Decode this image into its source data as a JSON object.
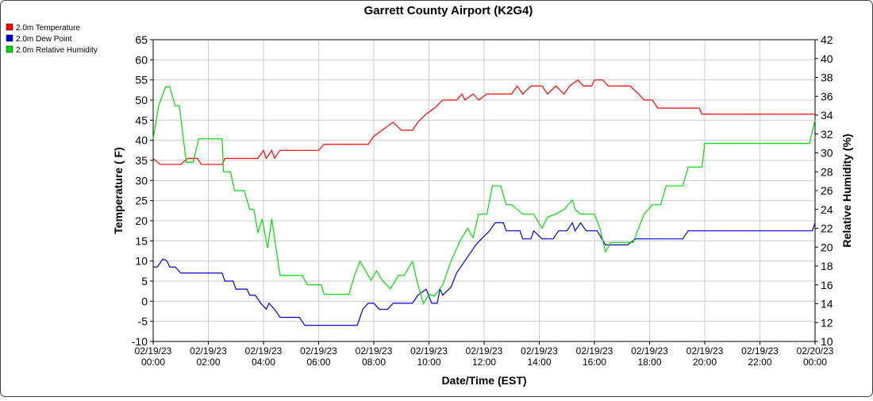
{
  "chart_data": {
    "type": "line",
    "title": "Garrett County Airport (K2G4)",
    "xlabel": "Date/Time (EST)",
    "ylabel": "Temperature ( F)",
    "y2label": "Relative Humidity (%)",
    "grid": true,
    "legend": "top-left",
    "xlim": [
      0,
      24
    ],
    "xticks": [
      {
        "value": 0,
        "label": "02/19/23 00:00"
      },
      {
        "value": 2,
        "label": "02/19/23 02:00"
      },
      {
        "value": 4,
        "label": "02/19/23 04:00"
      },
      {
        "value": 6,
        "label": "02/19/23 06:00"
      },
      {
        "value": 8,
        "label": "02/19/23 08:00"
      },
      {
        "value": 10,
        "label": "02/19/23 10:00"
      },
      {
        "value": 12,
        "label": "02/19/23 12:00"
      },
      {
        "value": 14,
        "label": "02/19/23 14:00"
      },
      {
        "value": 16,
        "label": "02/19/23 16:00"
      },
      {
        "value": 18,
        "label": "02/19/23 18:00"
      },
      {
        "value": 20,
        "label": "02/19/23 20:00"
      },
      {
        "value": 22,
        "label": "02/19/23 22:00"
      },
      {
        "value": 24,
        "label": "02/20/23 00:00"
      }
    ],
    "ylim": [
      -10,
      65
    ],
    "yticks": [
      -10,
      -5,
      0,
      5,
      10,
      15,
      20,
      25,
      30,
      35,
      40,
      45,
      50,
      55,
      60,
      65
    ],
    "y2lim": [
      10,
      42
    ],
    "y2ticks": [
      10,
      12,
      14,
      16,
      18,
      20,
      22,
      24,
      26,
      28,
      30,
      32,
      34,
      36,
      38,
      40,
      42
    ],
    "series": [
      {
        "name": "2.0m Temperature",
        "color": "#ff0000",
        "x": [
          0,
          0.25,
          1.0,
          1.25,
          1.6,
          1.75,
          2.5,
          2.6,
          3.8,
          4.0,
          4.1,
          4.3,
          4.4,
          4.6,
          6.0,
          6.2,
          7.8,
          8.0,
          8.3,
          8.7,
          9.0,
          9.4,
          9.6,
          9.9,
          10.2,
          10.5,
          11.0,
          11.2,
          11.3,
          11.6,
          11.8,
          12.1,
          13.0,
          13.2,
          13.4,
          13.7,
          14.1,
          14.3,
          14.6,
          14.9,
          15.1,
          15.4,
          15.6,
          15.9,
          16.0,
          16.3,
          16.5,
          17.3,
          17.6,
          17.8,
          18.1,
          18.3,
          19.8,
          19.9,
          24
        ],
        "values": [
          35.5,
          34,
          34,
          35.5,
          35.5,
          34,
          34,
          35.5,
          35.5,
          37.5,
          35.5,
          37.5,
          35.5,
          37.5,
          37.5,
          39,
          39,
          41,
          42.5,
          44.5,
          42.5,
          42.5,
          44.5,
          46.5,
          48,
          50,
          50,
          51.5,
          50,
          51.5,
          50,
          51.5,
          51.5,
          53.5,
          51.5,
          53.5,
          53.5,
          51.5,
          53.5,
          51.5,
          53.5,
          55,
          53.5,
          53.5,
          55,
          55,
          53.5,
          53.5,
          51.5,
          50,
          50,
          48,
          48,
          46.5,
          46.5
        ]
      },
      {
        "name": "2.0m Dew Point",
        "color": "#0000cc",
        "x": [
          0,
          0.15,
          0.35,
          0.5,
          0.6,
          0.8,
          1.0,
          2.5,
          2.6,
          2.9,
          3.0,
          3.4,
          3.5,
          3.7,
          3.9,
          4.1,
          4.2,
          4.4,
          4.6,
          5.3,
          5.5,
          7.4,
          7.6,
          7.8,
          8.0,
          8.2,
          8.5,
          8.7,
          9.4,
          9.6,
          9.9,
          10.1,
          10.3,
          10.4,
          10.5,
          10.8,
          11.0,
          11.3,
          11.5,
          11.7,
          11.9,
          12.2,
          12.4,
          12.7,
          12.8,
          13.3,
          13.4,
          13.7,
          13.8,
          14.1,
          14.5,
          14.7,
          15.0,
          15.2,
          15.3,
          15.5,
          15.7,
          16.1,
          16.4,
          17.2,
          17.5,
          18.0,
          19.2,
          19.4,
          23.9,
          24
        ],
        "values": [
          8.5,
          8.5,
          10.5,
          10,
          8.5,
          8.5,
          7,
          7,
          5,
          5,
          3,
          3,
          1.5,
          1.5,
          -0.5,
          -2,
          -0.5,
          -2,
          -4,
          -4,
          -6,
          -6,
          -2,
          -0.5,
          -0.5,
          -2,
          -2,
          -0.5,
          -0.5,
          1.5,
          3,
          -0.5,
          -0.5,
          3,
          1.5,
          3.5,
          7,
          10,
          12,
          14,
          15.5,
          17.5,
          19.5,
          19.5,
          17.5,
          17.5,
          15.5,
          15.5,
          17.5,
          15.5,
          15.5,
          17.5,
          17.5,
          19.5,
          17.5,
          19.5,
          17.5,
          17.5,
          14,
          14,
          15.5,
          15.5,
          15.5,
          17.5,
          17.5,
          19.5
        ]
      },
      {
        "name": "2.0m Relative Humidity",
        "color": "#00dd00",
        "axis": "y2",
        "x": [
          0,
          0.2,
          0.45,
          0.6,
          0.8,
          0.95,
          1.2,
          1.45,
          1.65,
          2.5,
          2.55,
          2.8,
          2.95,
          3.3,
          3.5,
          3.65,
          3.8,
          3.95,
          4.15,
          4.3,
          4.6,
          5.4,
          5.6,
          6.1,
          6.2,
          7.1,
          7.3,
          7.5,
          7.7,
          7.9,
          8.1,
          8.3,
          8.6,
          8.9,
          9.1,
          9.4,
          9.6,
          9.8,
          10.0,
          10.2,
          10.5,
          10.8,
          11.1,
          11.4,
          11.6,
          11.8,
          12.1,
          12.3,
          12.6,
          12.8,
          13.0,
          13.4,
          13.8,
          14.1,
          14.3,
          14.6,
          14.9,
          15.2,
          15.3,
          15.5,
          16.0,
          16.2,
          16.4,
          16.6,
          17.4,
          17.8,
          18.1,
          18.4,
          18.6,
          19.2,
          19.4,
          19.9,
          20.0,
          23.8,
          24
        ],
        "values": [
          31.5,
          35,
          37,
          37,
          35,
          35,
          29,
          29,
          31.5,
          31.5,
          28,
          28,
          26,
          26,
          24,
          24,
          21.5,
          23,
          19.9,
          23,
          17,
          17,
          16,
          16,
          15,
          15,
          17,
          18.5,
          17.5,
          16.5,
          17.5,
          16.5,
          15.6,
          17,
          17,
          18.5,
          16,
          14,
          15,
          14.8,
          16,
          18.5,
          20.5,
          22,
          21,
          23.5,
          23.5,
          26.5,
          26.5,
          24.5,
          24.5,
          23.5,
          23.5,
          22,
          23.2,
          23.5,
          24,
          25,
          24,
          23.5,
          23.5,
          22,
          19.5,
          20.5,
          20.5,
          23.5,
          24.5,
          24.5,
          26.5,
          26.5,
          28.5,
          28.5,
          31,
          31,
          33.5
        ]
      }
    ]
  }
}
